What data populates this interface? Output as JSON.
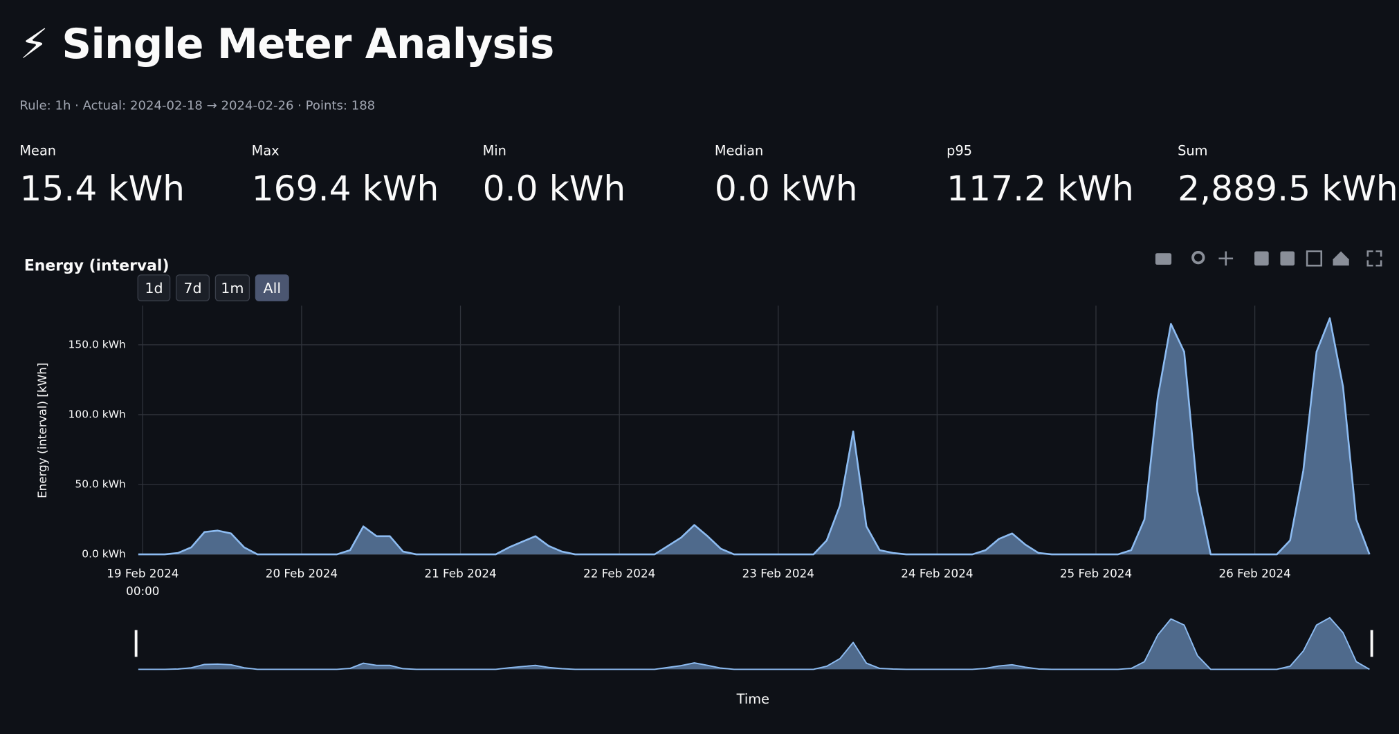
{
  "header": {
    "title": "⚡ Single Meter Analysis",
    "caption": "Rule: 1h · Actual: 2024-02-18 → 2024-02-26 · Points: 188"
  },
  "metrics": [
    {
      "label": "Mean",
      "value": "15.4 kWh"
    },
    {
      "label": "Max",
      "value": "169.4 kWh"
    },
    {
      "label": "Min",
      "value": "0.0 kWh"
    },
    {
      "label": "Median",
      "value": "0.0 kWh"
    },
    {
      "label": "p95",
      "value": "117.2 kWh"
    },
    {
      "label": "Sum",
      "value": "2,889.5 kWh"
    }
  ],
  "chart_data": {
    "type": "area",
    "title": "Energy (interval)",
    "range_buttons": [
      "1d",
      "7d",
      "1m",
      "All"
    ],
    "y_label": "Energy (interval) [kWh]",
    "x_label": "Time",
    "color": "#8dbcf2",
    "fill": "#4f6a8c",
    "grid": true,
    "xlim": [
      "2024-02-19 00:00",
      "2024-02-26 18:00"
    ],
    "ylim": [
      0,
      178
    ],
    "yticks": [
      {
        "value": 0,
        "label": "0.0 kWh"
      },
      {
        "value": 50,
        "label": "50.0 kWh"
      },
      {
        "value": 100,
        "label": "100.0 kWh"
      },
      {
        "value": 150,
        "label": "150.0 kWh"
      }
    ],
    "xticks": [
      {
        "value": "2024-02-19 00:00",
        "label": "19 Feb 2024\n00:00"
      },
      {
        "value": "2024-02-20 00:00",
        "label": "20 Feb 2024"
      },
      {
        "value": "2024-02-21 00:00",
        "label": "21 Feb 2024"
      },
      {
        "value": "2024-02-22 00:00",
        "label": "22 Feb 2024"
      },
      {
        "value": "2024-02-23 00:00",
        "label": "23 Feb 2024"
      },
      {
        "value": "2024-02-24 00:00",
        "label": "24 Feb 2024"
      },
      {
        "value": "2024-02-25 00:00",
        "label": "25 Feb 2024"
      },
      {
        "value": "2024-02-26 00:00",
        "label": "26 Feb 2024"
      }
    ],
    "x": [
      "2024-02-19 00:00",
      "2024-02-19 02:00",
      "2024-02-19 04:00",
      "2024-02-19 06:00",
      "2024-02-19 08:00",
      "2024-02-19 10:00",
      "2024-02-19 12:00",
      "2024-02-19 14:00",
      "2024-02-19 16:00",
      "2024-02-19 18:00",
      "2024-02-19 20:00",
      "2024-02-19 22:00",
      "2024-02-20 00:00",
      "2024-02-20 02:00",
      "2024-02-20 04:00",
      "2024-02-20 06:00",
      "2024-02-20 08:00",
      "2024-02-20 10:00",
      "2024-02-20 12:00",
      "2024-02-20 14:00",
      "2024-02-20 16:00",
      "2024-02-20 18:00",
      "2024-02-20 20:00",
      "2024-02-20 22:00",
      "2024-02-21 00:00",
      "2024-02-21 02:00",
      "2024-02-21 04:00",
      "2024-02-21 06:00",
      "2024-02-21 08:00",
      "2024-02-21 10:00",
      "2024-02-21 12:00",
      "2024-02-21 14:00",
      "2024-02-21 16:00",
      "2024-02-21 18:00",
      "2024-02-21 20:00",
      "2024-02-21 22:00",
      "2024-02-22 00:00",
      "2024-02-22 02:00",
      "2024-02-22 04:00",
      "2024-02-22 06:00",
      "2024-02-22 08:00",
      "2024-02-22 10:00",
      "2024-02-22 12:00",
      "2024-02-22 14:00",
      "2024-02-22 16:00",
      "2024-02-22 18:00",
      "2024-02-22 20:00",
      "2024-02-22 22:00",
      "2024-02-23 00:00",
      "2024-02-23 02:00",
      "2024-02-23 04:00",
      "2024-02-23 06:00",
      "2024-02-23 08:00",
      "2024-02-23 10:00",
      "2024-02-23 12:00",
      "2024-02-23 14:00",
      "2024-02-23 16:00",
      "2024-02-23 18:00",
      "2024-02-23 20:00",
      "2024-02-23 22:00",
      "2024-02-24 00:00",
      "2024-02-24 02:00",
      "2024-02-24 04:00",
      "2024-02-24 06:00",
      "2024-02-24 08:00",
      "2024-02-24 10:00",
      "2024-02-24 12:00",
      "2024-02-24 14:00",
      "2024-02-24 16:00",
      "2024-02-24 18:00",
      "2024-02-24 20:00",
      "2024-02-24 22:00",
      "2024-02-25 00:00",
      "2024-02-25 02:00",
      "2024-02-25 04:00",
      "2024-02-25 06:00",
      "2024-02-25 08:00",
      "2024-02-25 10:00",
      "2024-02-25 12:00",
      "2024-02-25 14:00",
      "2024-02-25 16:00",
      "2024-02-25 18:00",
      "2024-02-25 20:00",
      "2024-02-25 22:00",
      "2024-02-26 00:00",
      "2024-02-26 02:00",
      "2024-02-26 04:00",
      "2024-02-26 06:00",
      "2024-02-26 08:00",
      "2024-02-26 10:00",
      "2024-02-26 12:00",
      "2024-02-26 14:00",
      "2024-02-26 16:00",
      "2024-02-26 18:00"
    ],
    "values": [
      0,
      0,
      0,
      1,
      5,
      16,
      17,
      15,
      5,
      0,
      0,
      0,
      0,
      0,
      0,
      0,
      3,
      20,
      13,
      13,
      2,
      0,
      0,
      0,
      0,
      0,
      0,
      0,
      5,
      9,
      13,
      6,
      2,
      0,
      0,
      0,
      0,
      0,
      0,
      0,
      6,
      12,
      21,
      13,
      4,
      0,
      0,
      0,
      0,
      0,
      0,
      0,
      10,
      35,
      88,
      20,
      3,
      1,
      0,
      0,
      0,
      0,
      0,
      0,
      3,
      11,
      15,
      7,
      1,
      0,
      0,
      0,
      0,
      0,
      0,
      3,
      25,
      112,
      165,
      145,
      45,
      0,
      0,
      0,
      0,
      0,
      0,
      10,
      60,
      145,
      169,
      120,
      25,
      0
    ]
  }
}
